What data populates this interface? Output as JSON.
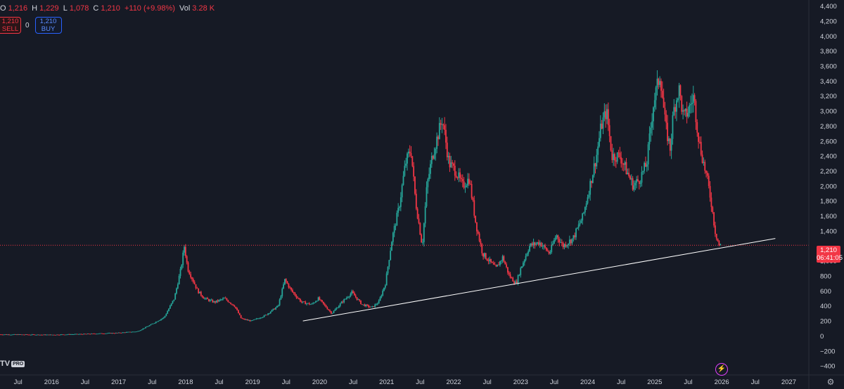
{
  "header": {
    "ohlc": [
      {
        "key": "O",
        "value": "1,216"
      },
      {
        "key": "H",
        "value": "1,229"
      },
      {
        "key": "L",
        "value": "1,078"
      },
      {
        "key": "C",
        "value": "1,210"
      },
      {
        "key": "",
        "value": "+110 (+9.98%)"
      },
      {
        "key": "Vol",
        "value": "3.28 K"
      }
    ]
  },
  "trade": {
    "sell_price": "1,210",
    "sell_label": "SELL",
    "spread": "0",
    "buy_price": "1,210",
    "buy_label": "BUY"
  },
  "price_tag": {
    "price": "1,210",
    "countdown": "06:41:05"
  },
  "logo": {
    "text": "TV",
    "badge": "PRO"
  },
  "colors": {
    "background": "#161a25",
    "up": "#26a69a",
    "down": "#f23645",
    "trendline": "#ffffff",
    "axis_text": "#d1d4dc"
  },
  "icons": {
    "alert": "lightning-icon",
    "settings": "gear-icon"
  },
  "chart_data": {
    "type": "candlestick",
    "y_ticks": [
      4400,
      4200,
      4000,
      3800,
      3600,
      3400,
      3200,
      3000,
      2800,
      2600,
      2400,
      2200,
      2000,
      1800,
      1600,
      1400,
      1000,
      800,
      600,
      400,
      200,
      0,
      -200,
      -400
    ],
    "y_tick_labels": [
      "4,400",
      "4,200",
      "4,000",
      "3,800",
      "3,600",
      "3,400",
      "3,200",
      "3,000",
      "2,800",
      "2,600",
      "2,400",
      "2,200",
      "2,000",
      "1,800",
      "1,600",
      "1,400",
      "1,000",
      "800",
      "600",
      "400",
      "200",
      "0",
      "−200",
      "−400"
    ],
    "ylim": [
      -520,
      4480
    ],
    "x_ticks": [
      {
        "label": "Jul",
        "date": 2015.5
      },
      {
        "label": "2016",
        "date": 2016.0
      },
      {
        "label": "Jul",
        "date": 2016.5
      },
      {
        "label": "2017",
        "date": 2017.0
      },
      {
        "label": "Jul",
        "date": 2017.5
      },
      {
        "label": "2018",
        "date": 2018.0
      },
      {
        "label": "Jul",
        "date": 2018.5
      },
      {
        "label": "2019",
        "date": 2019.0
      },
      {
        "label": "Jul",
        "date": 2019.5
      },
      {
        "label": "2020",
        "date": 2020.0
      },
      {
        "label": "Jul",
        "date": 2020.5
      },
      {
        "label": "2021",
        "date": 2021.0
      },
      {
        "label": "Jul",
        "date": 2021.5
      },
      {
        "label": "2022",
        "date": 2022.0
      },
      {
        "label": "Jul",
        "date": 2022.5
      },
      {
        "label": "2023",
        "date": 2023.0
      },
      {
        "label": "Jul",
        "date": 2023.5
      },
      {
        "label": "2024",
        "date": 2024.0
      },
      {
        "label": "Jul",
        "date": 2024.5
      },
      {
        "label": "2025",
        "date": 2025.0
      },
      {
        "label": "Jul",
        "date": 2025.5
      },
      {
        "label": "2026",
        "date": 2026.0
      },
      {
        "label": "Jul",
        "date": 2026.5
      },
      {
        "label": "2027",
        "date": 2027.0
      }
    ],
    "xlim": [
      2015.23,
      2027.3
    ],
    "price_path": [
      [
        2015.23,
        20
      ],
      [
        2016.0,
        15
      ],
      [
        2016.5,
        25
      ],
      [
        2017.0,
        40
      ],
      [
        2017.3,
        60
      ],
      [
        2017.5,
        150
      ],
      [
        2017.7,
        250
      ],
      [
        2017.85,
        500
      ],
      [
        2017.95,
        900
      ],
      [
        2018.0,
        1200
      ],
      [
        2018.05,
        900
      ],
      [
        2018.1,
        800
      ],
      [
        2018.2,
        600
      ],
      [
        2018.3,
        500
      ],
      [
        2018.45,
        450
      ],
      [
        2018.6,
        500
      ],
      [
        2018.75,
        400
      ],
      [
        2018.85,
        230
      ],
      [
        2019.0,
        200
      ],
      [
        2019.2,
        270
      ],
      [
        2019.4,
        400
      ],
      [
        2019.5,
        750
      ],
      [
        2019.6,
        600
      ],
      [
        2019.75,
        450
      ],
      [
        2019.9,
        420
      ],
      [
        2020.0,
        500
      ],
      [
        2020.1,
        400
      ],
      [
        2020.2,
        300
      ],
      [
        2020.35,
        450
      ],
      [
        2020.5,
        580
      ],
      [
        2020.65,
        420
      ],
      [
        2020.8,
        380
      ],
      [
        2020.9,
        450
      ],
      [
        2021.0,
        700
      ],
      [
        2021.1,
        1300
      ],
      [
        2021.2,
        1700
      ],
      [
        2021.3,
        2300
      ],
      [
        2021.38,
        2500
      ],
      [
        2021.45,
        1800
      ],
      [
        2021.5,
        1500
      ],
      [
        2021.55,
        1200
      ],
      [
        2021.62,
        2000
      ],
      [
        2021.7,
        2400
      ],
      [
        2021.85,
        2900
      ],
      [
        2021.95,
        2300
      ],
      [
        2022.05,
        2200
      ],
      [
        2022.15,
        2000
      ],
      [
        2022.25,
        2100
      ],
      [
        2022.35,
        1500
      ],
      [
        2022.45,
        1100
      ],
      [
        2022.55,
        1000
      ],
      [
        2022.65,
        900
      ],
      [
        2022.75,
        1050
      ],
      [
        2022.85,
        800
      ],
      [
        2022.95,
        700
      ],
      [
        2023.02,
        900
      ],
      [
        2023.15,
        1200
      ],
      [
        2023.3,
        1250
      ],
      [
        2023.45,
        1100
      ],
      [
        2023.55,
        1350
      ],
      [
        2023.65,
        1200
      ],
      [
        2023.8,
        1300
      ],
      [
        2023.95,
        1600
      ],
      [
        2024.05,
        2000
      ],
      [
        2024.15,
        2400
      ],
      [
        2024.22,
        2800
      ],
      [
        2024.3,
        3000
      ],
      [
        2024.38,
        2400
      ],
      [
        2024.5,
        2400
      ],
      [
        2024.6,
        2200
      ],
      [
        2024.7,
        2000
      ],
      [
        2024.8,
        2100
      ],
      [
        2024.9,
        2300
      ],
      [
        2025.0,
        3100
      ],
      [
        2025.05,
        3300
      ],
      [
        2025.1,
        3500
      ],
      [
        2025.18,
        2800
      ],
      [
        2025.25,
        2500
      ],
      [
        2025.3,
        3000
      ],
      [
        2025.38,
        3300
      ],
      [
        2025.45,
        2900
      ],
      [
        2025.52,
        3000
      ],
      [
        2025.6,
        3200
      ],
      [
        2025.68,
        2600
      ],
      [
        2025.75,
        2300
      ],
      [
        2025.8,
        2100
      ],
      [
        2025.86,
        1800
      ],
      [
        2025.92,
        1400
      ],
      [
        2025.98,
        1210
      ]
    ],
    "trendline": [
      [
        2019.75,
        200
      ],
      [
        2026.8,
        1300
      ]
    ],
    "current_price": 1210
  }
}
